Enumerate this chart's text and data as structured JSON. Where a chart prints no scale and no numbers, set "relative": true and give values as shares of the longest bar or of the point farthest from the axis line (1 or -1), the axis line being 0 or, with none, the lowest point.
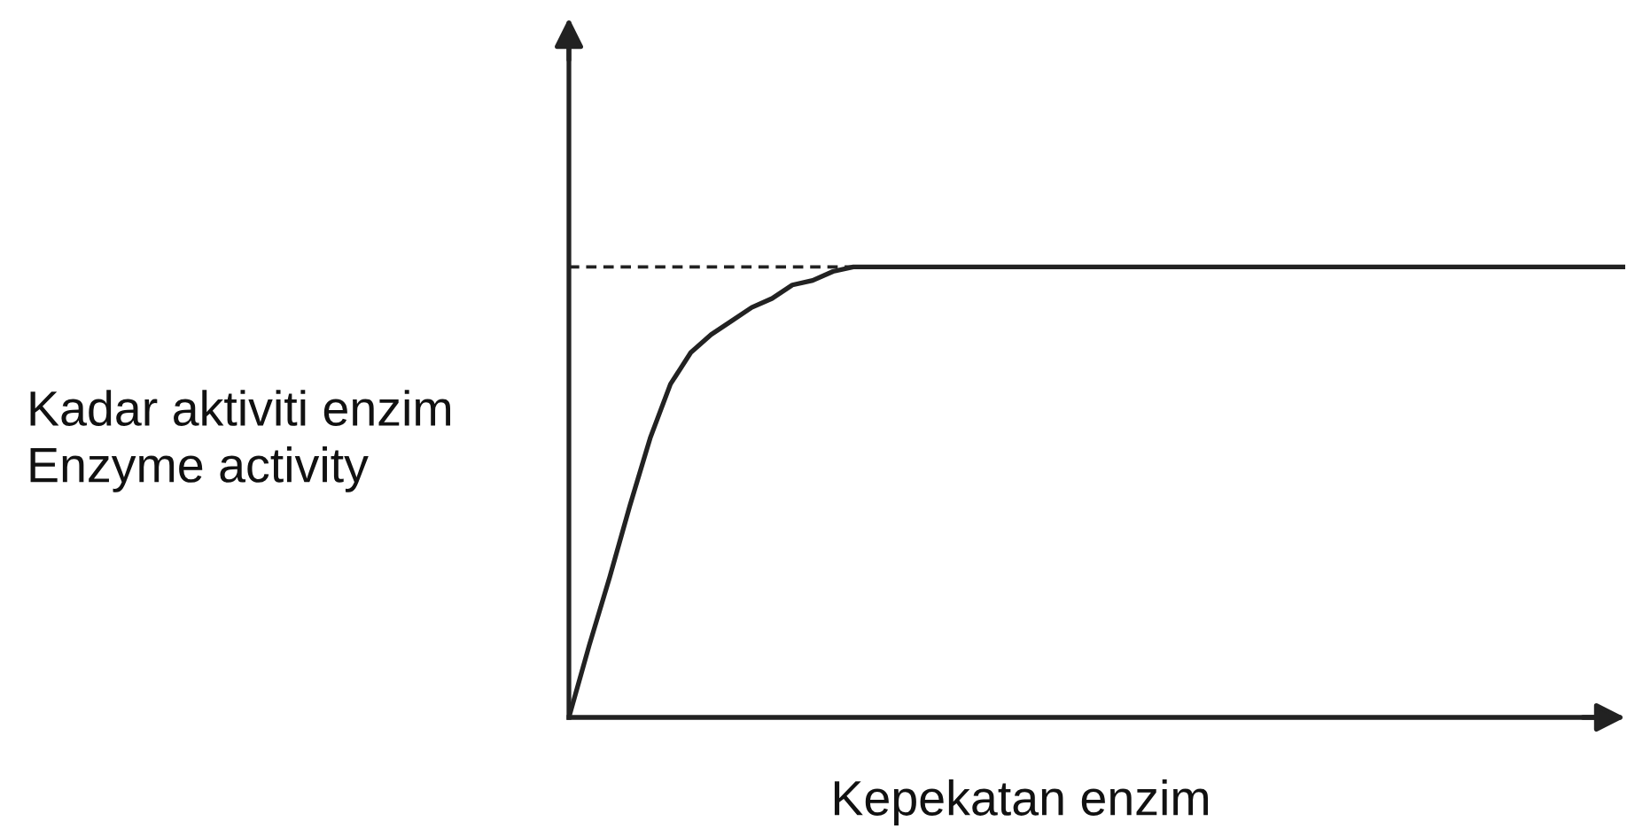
{
  "chart_data": {
    "type": "line",
    "xlabel": "Kepekatan enzim",
    "ylabel": "Kadar aktiviti enzim\nEnzyme activity",
    "relative": true,
    "line_style": "solid",
    "color": "#222222",
    "categories": [
      null,
      null,
      null,
      null,
      null,
      null,
      null,
      null,
      null,
      null,
      null,
      null,
      null,
      null,
      null,
      null,
      null,
      null,
      null,
      null,
      null,
      null,
      null,
      null,
      null,
      null,
      null,
      null,
      null,
      null,
      null,
      null,
      null,
      null,
      null,
      null,
      null,
      null,
      null,
      null,
      null,
      null,
      null,
      null,
      null,
      null,
      null,
      null,
      null,
      null,
      null,
      null,
      null
    ],
    "values": [
      0,
      0.16,
      0.31,
      0.47,
      0.62,
      0.74,
      0.81,
      0.85,
      0.88,
      0.91,
      0.93,
      0.96,
      0.97,
      0.99,
      1,
      1,
      1,
      1,
      1,
      1,
      1,
      1,
      1,
      1,
      1,
      1,
      1,
      1,
      1,
      1,
      1,
      1,
      1,
      1,
      1,
      1,
      1,
      1,
      1,
      1,
      1,
      1,
      1,
      1,
      1,
      1,
      1,
      1,
      1,
      1,
      1,
      1,
      1
    ],
    "ref_lines": [
      {
        "axis": "y",
        "value": 1,
        "color": "#222222",
        "line_style": "dashed"
      }
    ]
  }
}
